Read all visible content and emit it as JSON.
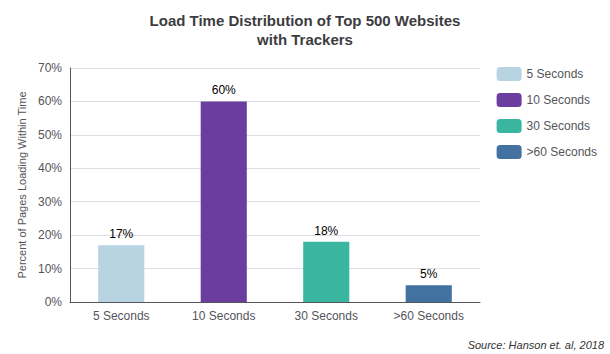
{
  "chart_data": {
    "type": "bar",
    "title": "Load Time Distribution of Top 500 Websites\nwith Trackers",
    "categories": [
      "5 Seconds",
      "10 Seconds",
      "30 Seconds",
      ">60 Seconds"
    ],
    "values": [
      0.17,
      0.6,
      0.18,
      0.05
    ],
    "value_labels": [
      "17%",
      "60%",
      "18%",
      "5%"
    ],
    "data_labels": true,
    "colors": [
      "#b8d4e3",
      "#6a3d9e",
      "#3ab5a0",
      "#4472a0"
    ],
    "ylabel": "Percent of Pages Loading Within Time",
    "ylim": [
      0,
      0.7
    ],
    "yticks": [
      {
        "value": 0.0,
        "label": "0%"
      },
      {
        "value": 0.1,
        "label": "10%"
      },
      {
        "value": 0.2,
        "label": "20%"
      },
      {
        "value": 0.3,
        "label": "30%"
      },
      {
        "value": 0.4,
        "label": "40%"
      },
      {
        "value": 0.5,
        "label": "50%"
      },
      {
        "value": 0.6,
        "label": "60%"
      },
      {
        "value": 0.7,
        "label": "70%"
      }
    ],
    "grid": true,
    "legend": "upper right",
    "annotations": [
      "Source: Hanson et. al, 2018"
    ]
  }
}
